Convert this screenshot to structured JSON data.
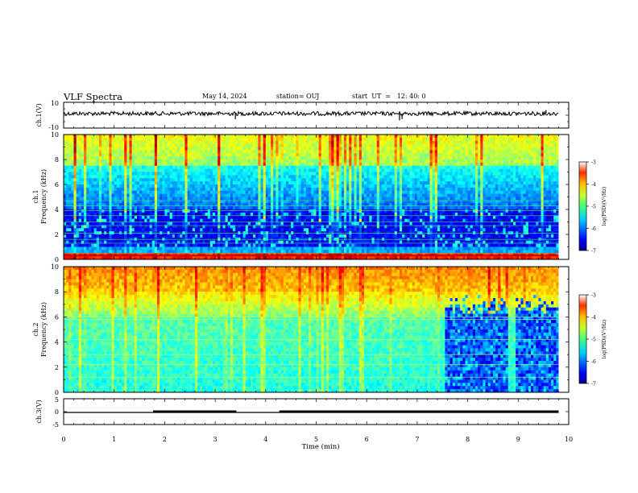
{
  "header": {
    "title": "VLF Spectra",
    "date": "May 14, 2024",
    "station": "station= OUJ",
    "start": "start  UT  =   12: 40: 0"
  },
  "chart_data": [
    {
      "type": "line",
      "panel": "ch1-waveform",
      "ylabel": "ch.1(V)",
      "ylim": [
        -10,
        10
      ],
      "yticks": [
        "10",
        "-10"
      ],
      "xlim": [
        0,
        10
      ],
      "series": [
        {
          "x": [
            0,
            9.8
          ],
          "y": [
            0,
            0
          ]
        }
      ],
      "spikes": [
        {
          "x": 3.4,
          "y": -3
        },
        {
          "x": 6.65,
          "y": -4
        },
        {
          "x": 6.7,
          "y": -3
        },
        {
          "x": 8.0,
          "y": 3
        },
        {
          "x": 9.55,
          "y": 4
        }
      ]
    },
    {
      "type": "heatmap",
      "panel": "ch1-spectrogram",
      "ylabel": "ch.1\nFrequency (kHz)",
      "ylabel_lines": [
        "ch.1",
        "Frequency (kHz)"
      ],
      "ylim": [
        0,
        10
      ],
      "yticks": [
        "0",
        "2",
        "4",
        "6",
        "8",
        "10"
      ],
      "xlim": [
        0,
        10
      ],
      "colorbar": {
        "label": "log(PSD)(V²/Hz)",
        "ticks": [
          "-3",
          "-4",
          "-5",
          "-6",
          "-7"
        ],
        "range": [
          -7,
          -3
        ]
      }
    },
    {
      "type": "heatmap",
      "panel": "ch2-spectrogram",
      "ylabel_lines": [
        "ch.2",
        "Frequency (kHz)"
      ],
      "ylim": [
        0,
        10
      ],
      "yticks": [
        "0",
        "2",
        "4",
        "6",
        "8",
        "10"
      ],
      "xlim": [
        0,
        10
      ],
      "colorbar": {
        "label": "log(PSD)(V²/Hz)",
        "ticks": [
          "-3",
          "-4",
          "-5",
          "-6",
          "-7"
        ],
        "range": [
          -7,
          -3
        ]
      }
    },
    {
      "type": "line",
      "panel": "ch3-status",
      "ylabel": "ch.3(V)",
      "ylim": [
        -5,
        5
      ],
      "yticks": [
        "5",
        "0",
        "-5"
      ],
      "xlim": [
        0,
        10
      ],
      "xticks": [
        "0",
        "1",
        "2",
        "3",
        "4",
        "5",
        "6",
        "7",
        "8",
        "9",
        "10"
      ],
      "xlabel": "Time (min)",
      "thick_segments": [
        [
          1.77,
          3.42
        ],
        [
          4.27,
          9.8
        ]
      ],
      "series": [
        {
          "x": [
            0,
            9.8
          ],
          "y": [
            0,
            0
          ]
        }
      ]
    }
  ],
  "colors": {
    "jet": [
      "#00008f",
      "#0000ff",
      "#0060ff",
      "#00c0ff",
      "#20ffe0",
      "#80ff80",
      "#e0ff20",
      "#ffc000",
      "#ff6000",
      "#e00000",
      "#800000"
    ]
  }
}
